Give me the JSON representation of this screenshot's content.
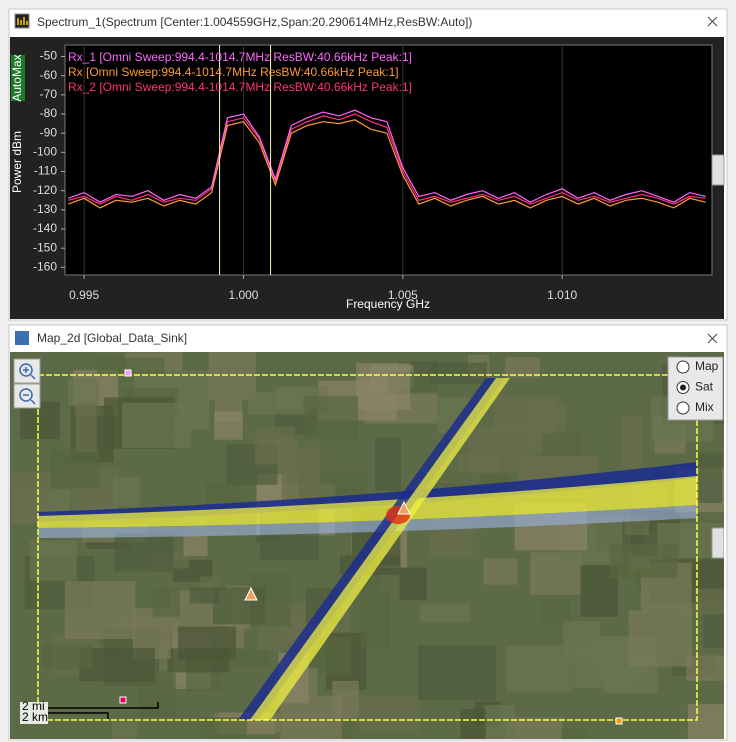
{
  "spectrum_window": {
    "title": "Spectrum_1(Spectrum [Center:1.004559GHz,Span:20.290614MHz,ResBW:Auto])"
  },
  "chart_data": {
    "type": "line",
    "mode_label": "AutoMax",
    "ylabel": "Power dBm",
    "xlabel": "Frequency GHz",
    "xlim": [
      0.9944,
      1.0147
    ],
    "ylim": [
      -164,
      -44
    ],
    "xticks": [
      0.995,
      {
        "value": 1,
        "label": "1.000"
      },
      1.005,
      {
        "value": 1.01,
        "label": "1.010"
      }
    ],
    "yticks": [
      -50,
      -60,
      -70,
      -80,
      -90,
      -100,
      -110,
      -120,
      -130,
      -140,
      -150,
      -160
    ],
    "markers": [
      0.99925,
      1.00085
    ],
    "x": [
      0.9945,
      0.995,
      0.9955,
      0.996,
      0.9965,
      0.997,
      0.9975,
      0.998,
      0.9985,
      0.999,
      0.9995,
      1.0,
      1.0005,
      1.001,
      1.0015,
      1.002,
      1.0025,
      1.003,
      1.0035,
      1.004,
      1.0045,
      1.005,
      1.0055,
      1.006,
      1.0065,
      1.007,
      1.0075,
      1.008,
      1.0085,
      1.009,
      1.0095,
      1.01,
      1.0105,
      1.011,
      1.0115,
      1.012,
      1.0125,
      1.013,
      1.0135,
      1.014,
      1.0145
    ],
    "series": [
      {
        "name": "Rx_1 [Omni Sweep:994.4-1014.7MHz ResBW:40.66kHz Peak:1]",
        "color": "#ff66ff",
        "values": [
          -124,
          -121,
          -126,
          -122,
          -123,
          -120,
          -125,
          -122,
          -124,
          -118,
          -82,
          -80,
          -92,
          -114,
          -86,
          -82,
          -79,
          -81,
          -78,
          -82,
          -84,
          -108,
          -123,
          -121,
          -125,
          -122,
          -120,
          -124,
          -121,
          -126,
          -122,
          -119,
          -124,
          -121,
          -125,
          -122,
          -120,
          -123,
          -126,
          -121,
          -123
        ]
      },
      {
        "name": "Rx [Omni Sweep:994.4-1014.7MHz ResBW:40.66kHz Peak:1]",
        "color": "#ff9933",
        "values": [
          -127,
          -124,
          -129,
          -125,
          -126,
          -124,
          -128,
          -125,
          -127,
          -121,
          -86,
          -84,
          -95,
          -117,
          -90,
          -86,
          -84,
          -85,
          -83,
          -88,
          -90,
          -112,
          -127,
          -124,
          -128,
          -125,
          -123,
          -127,
          -125,
          -129,
          -125,
          -123,
          -127,
          -124,
          -128,
          -125,
          -124,
          -126,
          -129,
          -124,
          -126
        ]
      },
      {
        "name": "Rx_2 [Omni Sweep:994.4-1014.7MHz ResBW:40.66kHz Peak:1]",
        "color": "#ff3377",
        "values": [
          -125,
          -123,
          -127,
          -123,
          -125,
          -122,
          -126,
          -124,
          -125,
          -119,
          -84,
          -82,
          -93,
          -115,
          -88,
          -84,
          -81,
          -83,
          -80,
          -84,
          -87,
          -110,
          -125,
          -123,
          -126,
          -124,
          -122,
          -125,
          -123,
          -127,
          -124,
          -121,
          -125,
          -123,
          -126,
          -124,
          -122,
          -124,
          -127,
          -123,
          -124
        ]
      }
    ]
  },
  "map_window": {
    "title": "Map_2d [Global_Data_Sink]",
    "layers": [
      "Map",
      "Sat",
      "Mix"
    ],
    "selected_layer": "Sat",
    "scale": [
      "2 mi",
      "2 km"
    ]
  }
}
